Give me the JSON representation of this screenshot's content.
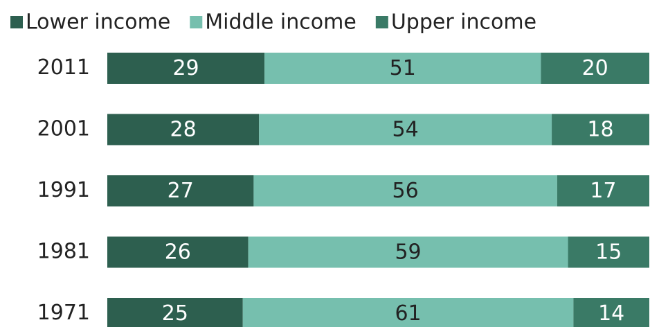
{
  "chart_data": {
    "type": "stacked-bar-horizontal",
    "categories": [
      "2011",
      "2001",
      "1991",
      "1981",
      "1971"
    ],
    "series": [
      {
        "name": "Lower income",
        "color": "#2d5f4f",
        "values": [
          29,
          28,
          27,
          26,
          25
        ]
      },
      {
        "name": "Middle income",
        "color": "#76bfae",
        "values": [
          51,
          54,
          56,
          59,
          61
        ]
      },
      {
        "name": "Upper income",
        "color": "#3a7a66",
        "values": [
          20,
          18,
          17,
          15,
          14
        ]
      }
    ],
    "legend": "top"
  }
}
